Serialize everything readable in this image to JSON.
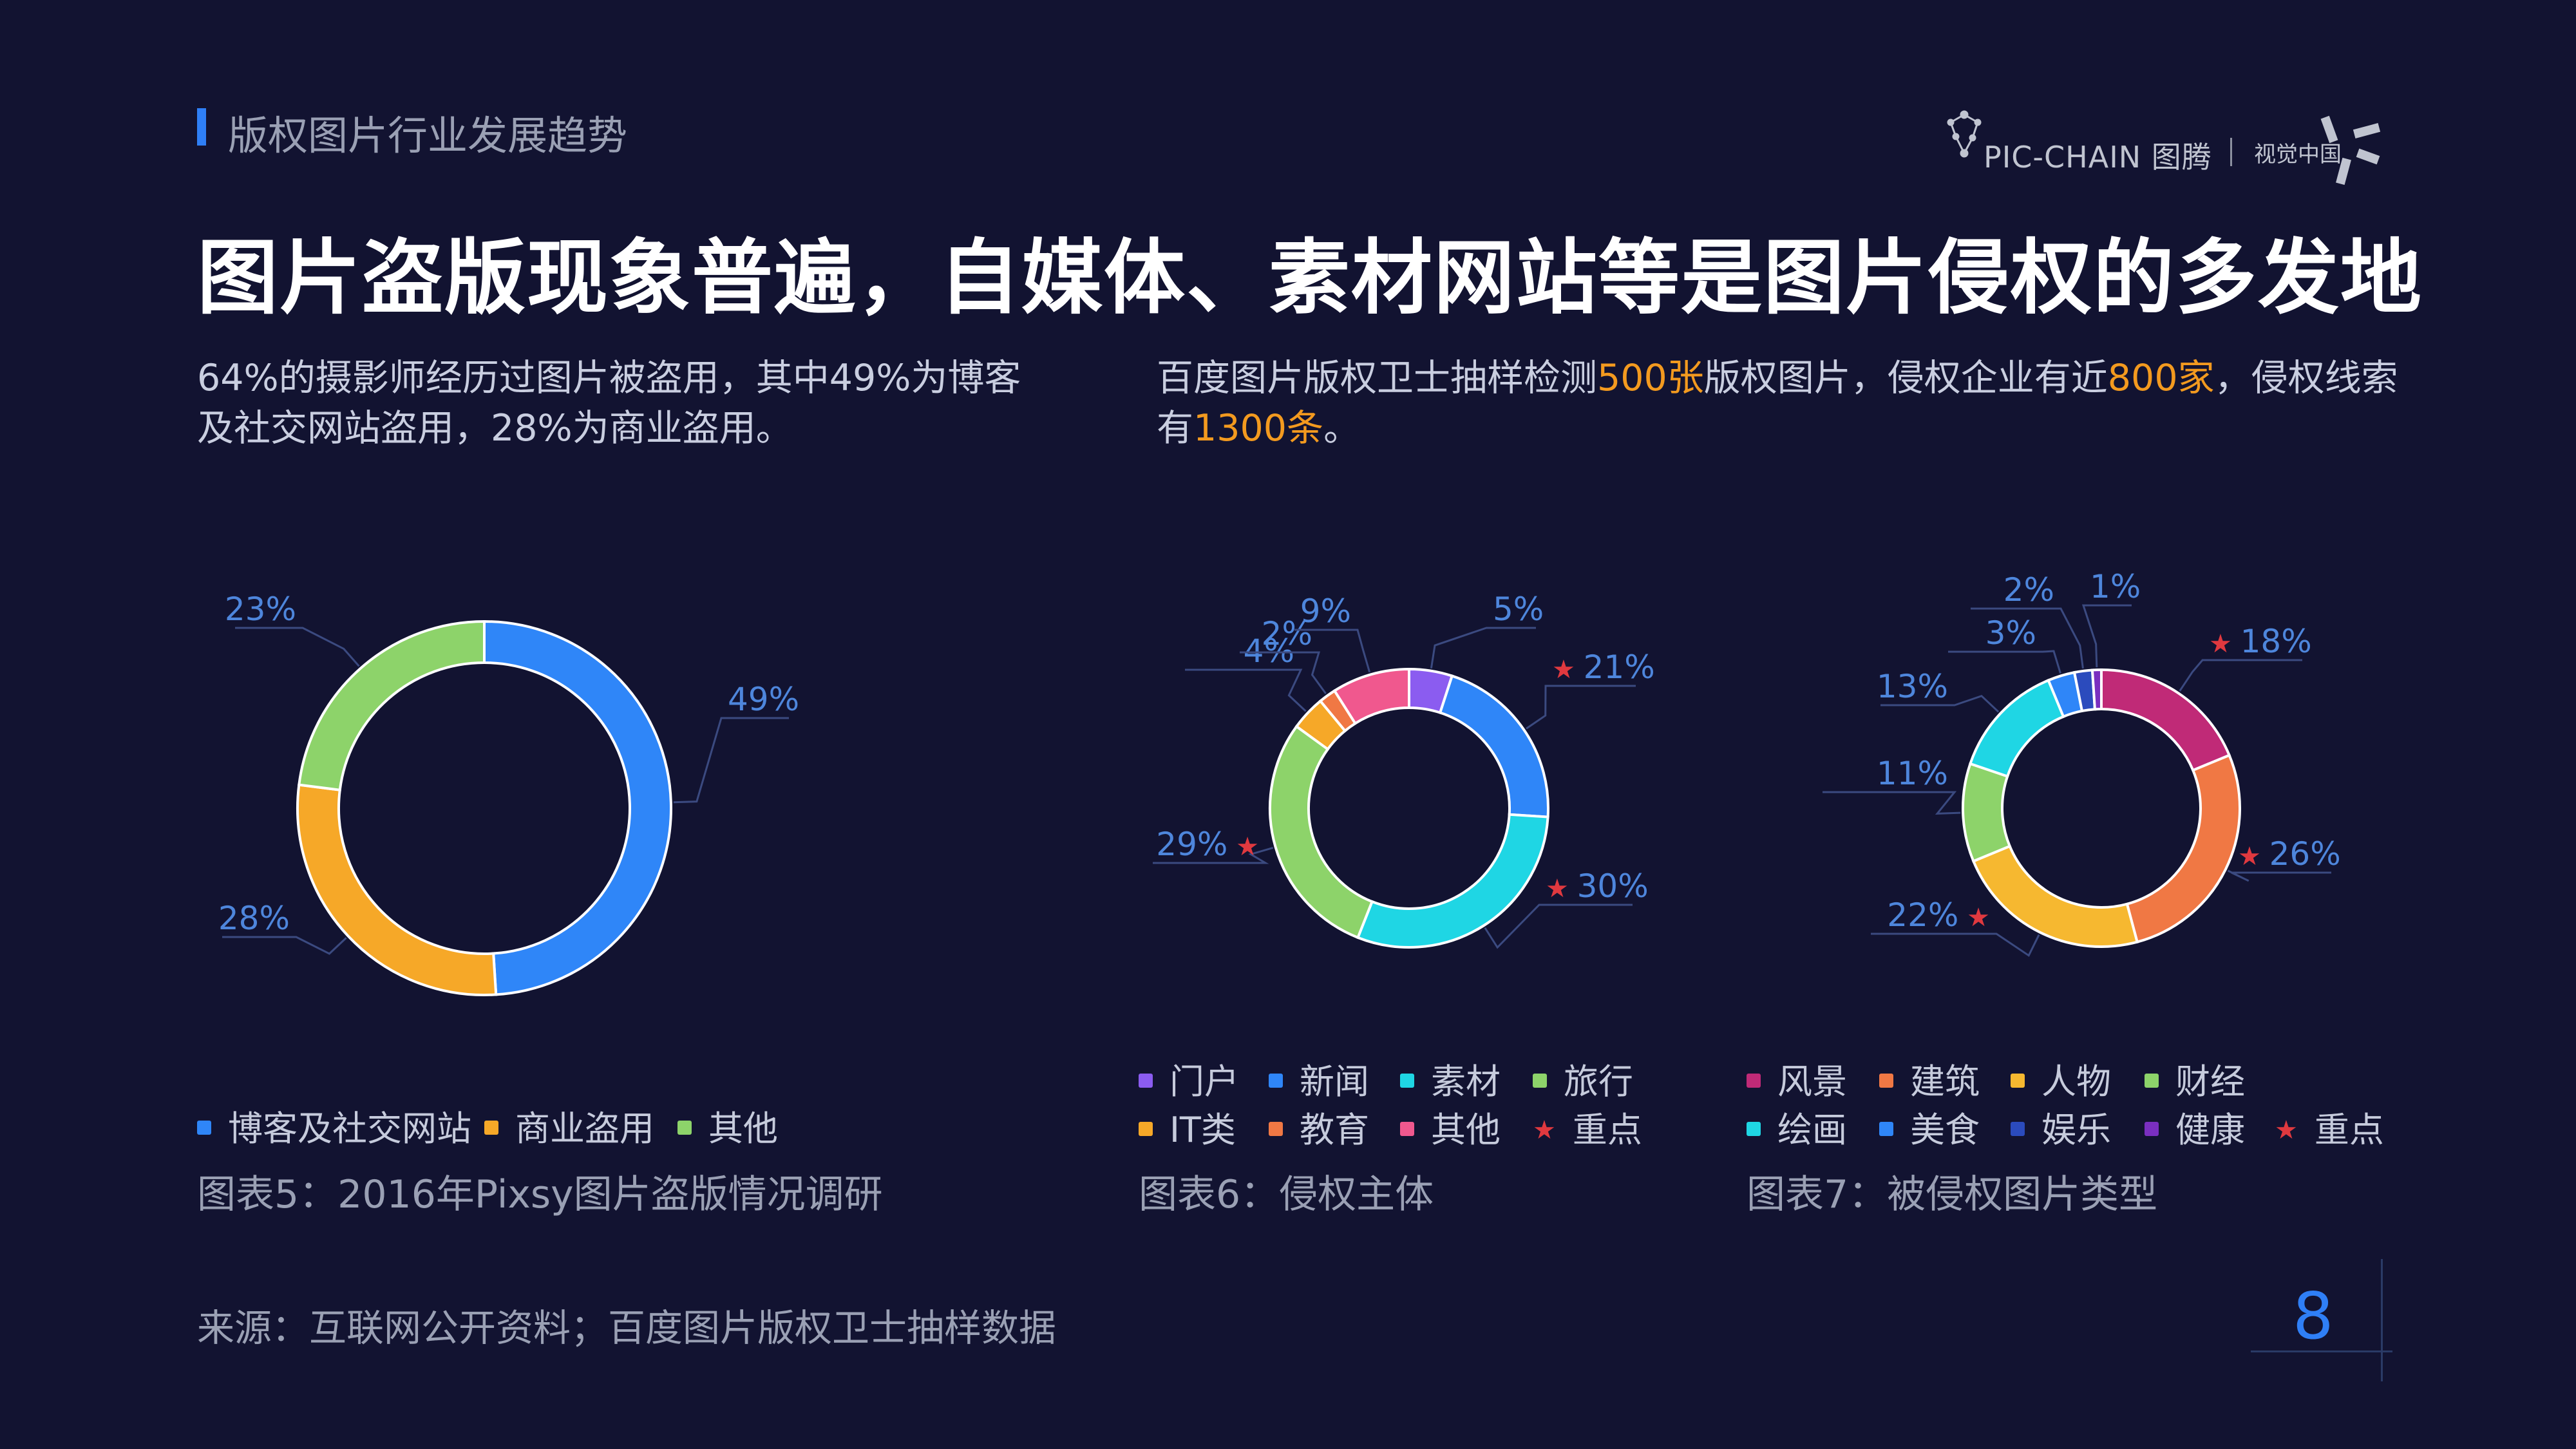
{
  "header": {
    "section_title": "版权图片行业发展趋势",
    "logo_text": "PIC-CHAIN 图腾",
    "logo_brand": "视觉中国"
  },
  "headline": "图片盗版现象普遍，自媒体、素材网站等是图片侵权的多发地",
  "para_left": "64%的摄影师经历过图片被盗用，其中49%为博客及社交网站盗用，28%为商业盗用。",
  "para_right": {
    "t1": "百度图片版权卫士抽样检测",
    "h1": "500张",
    "t2": "版权图片，侵权企业有近",
    "h2": "800家",
    "t3": "，侵权线索有",
    "h3": "1300条",
    "t4": "。"
  },
  "colors": {
    "highlight": "#f39a1f",
    "accent_blue": "#2f7ff6",
    "star": "#e0393f",
    "label": "#4e86dc"
  },
  "chart_data": [
    {
      "type": "pie",
      "variant": "donut",
      "caption": "图表5：2016年Pixsy图片盗版情况调研",
      "categories": [
        "博客及社交网站",
        "商业盗用",
        "其他"
      ],
      "values": [
        49,
        28,
        23
      ],
      "labels": [
        "49%",
        "28%",
        "23%"
      ],
      "colors": [
        "#2f86f8",
        "#f6a828",
        "#8dd36a"
      ],
      "starred": [
        false,
        false,
        false
      ],
      "legend": "bottom"
    },
    {
      "type": "pie",
      "variant": "donut",
      "caption": "图表6：侵权主体",
      "categories": [
        "门户",
        "新闻",
        "素材",
        "旅行",
        "IT类",
        "教育",
        "其他"
      ],
      "values": [
        5,
        21,
        30,
        29,
        4,
        2,
        9
      ],
      "labels": [
        "5%",
        "21%",
        "30%",
        "29%",
        "4%",
        "2%",
        "9%"
      ],
      "colors": [
        "#8b5cf0",
        "#2f86f8",
        "#1fd6e4",
        "#8dd36a",
        "#f6a828",
        "#f07844",
        "#f0588e"
      ],
      "starred": [
        false,
        true,
        true,
        true,
        false,
        false,
        false
      ],
      "star_legend": "重点",
      "legend": "bottom"
    },
    {
      "type": "pie",
      "variant": "donut",
      "caption": "图表7：被侵权图片类型",
      "categories": [
        "风景",
        "建筑",
        "人物",
        "财经",
        "绘画",
        "美食",
        "娱乐",
        "健康"
      ],
      "values": [
        18,
        26,
        22,
        11,
        13,
        3,
        2,
        1
      ],
      "labels": [
        "18%",
        "26%",
        "22%",
        "11%",
        "13%",
        "3%",
        "2%",
        "1%"
      ],
      "colors": [
        "#c02a77",
        "#f07844",
        "#f6b830",
        "#8dd36a",
        "#1fd6e4",
        "#2f86f8",
        "#2b4bbd",
        "#7a2fc0"
      ],
      "starred": [
        true,
        true,
        true,
        false,
        false,
        false,
        false,
        false
      ],
      "star_legend": "重点",
      "legend": "bottom"
    }
  ],
  "source": "来源：互联网公开资料；百度图片版权卫士抽样数据",
  "page_number": "8"
}
